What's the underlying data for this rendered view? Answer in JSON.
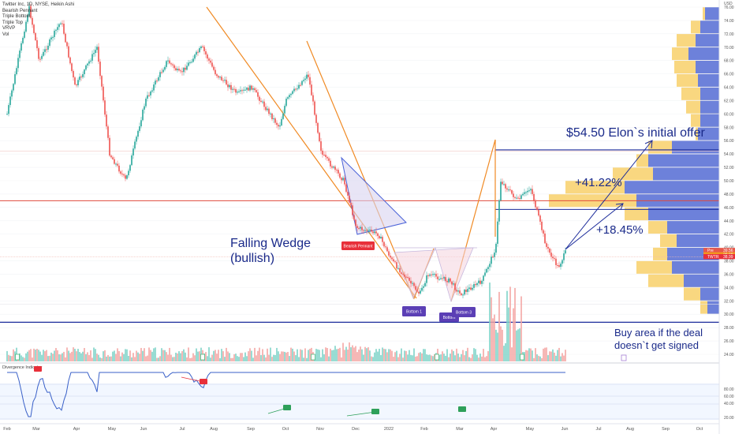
{
  "chart_data": {
    "type": "candlestick",
    "title": "Twitter Inc, 1D, NYSE, Heikin Ashi",
    "legend_items": [
      "Bearish Pennant",
      "Triple Bottom",
      "Triple Top",
      "VRVP",
      "Vol"
    ],
    "y_ticks": [
      "76.00",
      "74.00",
      "72.00",
      "70.00",
      "68.00",
      "66.00",
      "64.00",
      "62.00",
      "60.00",
      "58.00",
      "56.00",
      "54.00",
      "52.00",
      "50.00",
      "48.00",
      "46.00",
      "44.00",
      "42.00",
      "40.00",
      "38.00",
      "36.00",
      "34.00",
      "32.00",
      "30.00",
      "28.00",
      "26.00",
      "24.00"
    ],
    "currency": "USD",
    "x_ticks": [
      "Feb",
      "Mar",
      "Apr",
      "May",
      "Jun",
      "Jul",
      "Aug",
      "Sep",
      "Oct",
      "Nov",
      "Dec",
      "2022",
      "Feb",
      "Mar",
      "Apr",
      "May",
      "Jun",
      "Jul",
      "Aug",
      "Sep",
      "Oct"
    ],
    "ylim": [
      23,
      77
    ],
    "price_path": [
      {
        "date": "2021-02",
        "price": 60
      },
      {
        "date": "2021-02-20",
        "price": 76
      },
      {
        "date": "2021-03",
        "price": 68
      },
      {
        "date": "2021-03-20",
        "price": 74
      },
      {
        "date": "2021-04",
        "price": 64
      },
      {
        "date": "2021-04-20",
        "price": 70
      },
      {
        "date": "2021-05",
        "price": 54
      },
      {
        "date": "2021-05-15",
        "price": 50
      },
      {
        "date": "2021-06",
        "price": 62
      },
      {
        "date": "2021-06-20",
        "price": 68
      },
      {
        "date": "2021-07",
        "price": 66
      },
      {
        "date": "2021-07-20",
        "price": 70
      },
      {
        "date": "2021-08",
        "price": 66
      },
      {
        "date": "2021-08-20",
        "price": 63
      },
      {
        "date": "2021-09",
        "price": 64
      },
      {
        "date": "2021-09-25",
        "price": 58
      },
      {
        "date": "2021-10",
        "price": 62
      },
      {
        "date": "2021-10-20",
        "price": 66
      },
      {
        "date": "2021-11",
        "price": 54
      },
      {
        "date": "2021-11-20",
        "price": 50
      },
      {
        "date": "2021-12",
        "price": 43
      },
      {
        "date": "2021-12-20",
        "price": 42
      },
      {
        "date": "2022-01",
        "price": 38
      },
      {
        "date": "2022-01-25",
        "price": 33
      },
      {
        "date": "2022-02",
        "price": 36
      },
      {
        "date": "2022-02-20",
        "price": 35
      },
      {
        "date": "2022-03",
        "price": 33
      },
      {
        "date": "2022-03-20",
        "price": 35
      },
      {
        "date": "2022-04",
        "price": 40
      },
      {
        "date": "2022-04-05",
        "price": 50
      },
      {
        "date": "2022-04-20",
        "price": 47
      },
      {
        "date": "2022-05",
        "price": 49
      },
      {
        "date": "2022-05-15",
        "price": 40
      },
      {
        "date": "2022-05-25",
        "price": 37
      },
      {
        "date": "2022-06",
        "price": 39.5
      }
    ],
    "price_labels": [
      {
        "label": "Pre",
        "value": "39.56"
      },
      {
        "label": "",
        "value": "39.08"
      },
      {
        "label": "TWTR",
        "value": "38.99"
      }
    ],
    "patterns": [
      "Falling Wedge",
      "Bearish Pennant",
      "Triple Bottom"
    ],
    "pattern_labels": {
      "bearish_pennant": "Bearish Pennant",
      "bottom1": "Bottom 1",
      "bottom2": "Bottom",
      "bottom3": "Bottom 3"
    },
    "levels": [
      {
        "name": "elon_offer",
        "value": 54.5
      },
      {
        "name": "mid_line",
        "value": 45.7
      },
      {
        "name": "red_line",
        "value": 47
      },
      {
        "name": "buy_area",
        "value": 28.8
      }
    ],
    "annotations": {
      "falling_wedge": "Falling Wedge",
      "falling_wedge_sub": "(bullish)",
      "elon_offer": "$54.50 Elon`s initial offer",
      "gain1": "+41.22%",
      "gain2": "+18.45%",
      "buy_area_1": "Buy area if the deal",
      "buy_area_2": "doesn`t get signed"
    },
    "indicator": {
      "name": "Divergence Indicator",
      "y_ticks": [
        "80.00",
        "60.00",
        "40.00",
        "20.00"
      ],
      "signals": [
        "Bear",
        "Bear",
        "Bull",
        "Bull",
        "Bull",
        "Bull"
      ]
    },
    "grid": true
  }
}
